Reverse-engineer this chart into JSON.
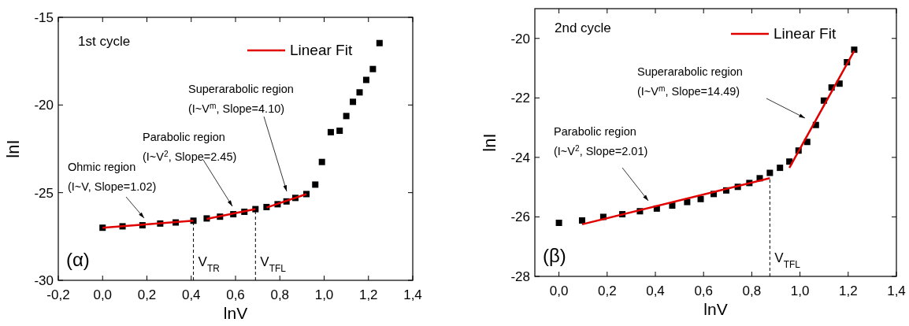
{
  "chart_data": [
    {
      "type": "scatter",
      "xlabel": "lnV",
      "ylabel": "lnI",
      "marker": "square",
      "legend": "top right",
      "grid": false,
      "xlim": [
        -0.2,
        1.4
      ],
      "xticks": [
        {
          "value": -0.2,
          "label": "-0,2"
        },
        {
          "value": 0,
          "label": "0,0"
        },
        {
          "value": 0.2,
          "label": "0,2"
        },
        {
          "value": 0.4,
          "label": "0,4"
        },
        {
          "value": 0.6,
          "label": "0,6"
        },
        {
          "value": 0.8,
          "label": "0,8"
        },
        {
          "value": 1.0,
          "label": "1,0"
        },
        {
          "value": 1.2,
          "label": "1,2"
        },
        {
          "value": 1.4,
          "label": "1,4"
        }
      ],
      "ylim": [
        -30,
        -15
      ],
      "yticks": [
        -30,
        -25,
        -20,
        -15
      ],
      "series": [
        {
          "color": "#000000",
          "x": [
            0,
            0.09,
            0.18,
            0.26,
            0.33,
            0.41,
            0.47,
            0.53,
            0.59,
            0.64,
            0.69,
            0.74,
            0.79,
            0.83,
            0.87,
            0.92,
            0.96,
            0.99,
            1.03,
            1.07,
            1.1,
            1.13,
            1.16,
            1.19,
            1.22,
            1.25
          ],
          "values": [
            -27.0,
            -26.92,
            -26.86,
            -26.76,
            -26.7,
            -26.6,
            -26.47,
            -26.37,
            -26.23,
            -26.09,
            -25.94,
            -25.82,
            -25.66,
            -25.5,
            -25.3,
            -25.08,
            -24.54,
            -23.25,
            -21.55,
            -21.47,
            -20.63,
            -19.82,
            -19.28,
            -18.57,
            -17.95,
            -16.47
          ]
        },
        {
          "type": "line",
          "name": "Linear Fit",
          "color": "#e00000",
          "line_style": "solid",
          "marker": "none",
          "x": [
            0,
            0.41,
            0.44,
            0.47,
            0.69,
            0.715,
            0.74,
            0.92
          ],
          "values": [
            -27.0,
            -26.6,
            null,
            -26.5,
            -25.94,
            null,
            -25.85,
            -25.08
          ]
        }
      ],
      "ref_lines": [
        {
          "axis": "x",
          "value": 0.41,
          "label": "V$_{TR}$",
          "line_style": "dashed",
          "color": "#000000"
        },
        {
          "axis": "x",
          "value": 0.69,
          "label": "V$_{TFL}$",
          "line_style": "dashed",
          "color": "#000000"
        }
      ],
      "annotations": [
        "1st cycle",
        "(α)",
        "Ohmic region\n(I~V, Slope=1.02)",
        "Parabolic region\n(I~V$^{2}$, Slope=2.45)",
        "Superarabolic region\n(I~V$^{m}$, Slope=4.10)"
      ]
    },
    {
      "type": "scatter",
      "xlabel": "lnV",
      "ylabel": "lnI",
      "marker": "square",
      "legend": "top right",
      "grid": false,
      "xlim": [
        -0.1,
        1.4
      ],
      "xticks": [
        {
          "value": 0,
          "label": "0,0"
        },
        {
          "value": 0.2,
          "label": "0,2"
        },
        {
          "value": 0.4,
          "label": "0,4"
        },
        {
          "value": 0.6,
          "label": "0,6"
        },
        {
          "value": 0.8,
          "label": "0,8"
        },
        {
          "value": 1.0,
          "label": "1,0"
        },
        {
          "value": 1.2,
          "label": "1,2"
        },
        {
          "value": 1.4,
          "label": "1,4"
        }
      ],
      "ylim": [
        -28,
        -19
      ],
      "yticks": [
        -28,
        -26,
        -24,
        -22,
        -20
      ],
      "series": [
        {
          "color": "#000000",
          "x": [
            0,
            0.096,
            0.184,
            0.263,
            0.336,
            0.406,
            0.47,
            0.532,
            0.588,
            0.642,
            0.694,
            0.742,
            0.79,
            0.833,
            0.875,
            0.917,
            0.956,
            0.994,
            1.03,
            1.066,
            1.099,
            1.131,
            1.164,
            1.195,
            1.225
          ],
          "values": [
            -26.2,
            -26.12,
            -26.0,
            -25.91,
            -25.81,
            -25.72,
            -25.62,
            -25.5,
            -25.4,
            -25.23,
            -25.11,
            -24.99,
            -24.86,
            -24.7,
            -24.52,
            -24.35,
            -24.14,
            -23.77,
            -23.48,
            -22.91,
            -22.09,
            -21.65,
            -21.52,
            -20.8,
            -20.38
          ]
        },
        {
          "type": "line",
          "name": "Linear Fit",
          "color": "#e00000",
          "line_style": "solid",
          "marker": "none",
          "x": [
            0.096,
            0.875,
            0.915,
            0.956,
            1.225
          ],
          "values": [
            -26.25,
            -24.7,
            null,
            -24.35,
            -20.42
          ]
        }
      ],
      "ref_lines": [
        {
          "axis": "x",
          "value": 0.875,
          "label": "V$_{TFL}$",
          "line_style": "dashed",
          "color": "#000000"
        }
      ],
      "annotations": [
        "2nd cycle",
        "(β)",
        "Parabolic region\n(I~V$^{2}$, Slope=2.01)",
        "Superarabolic region\n(I~V$^{m}$, Slope=14.49)"
      ]
    }
  ]
}
